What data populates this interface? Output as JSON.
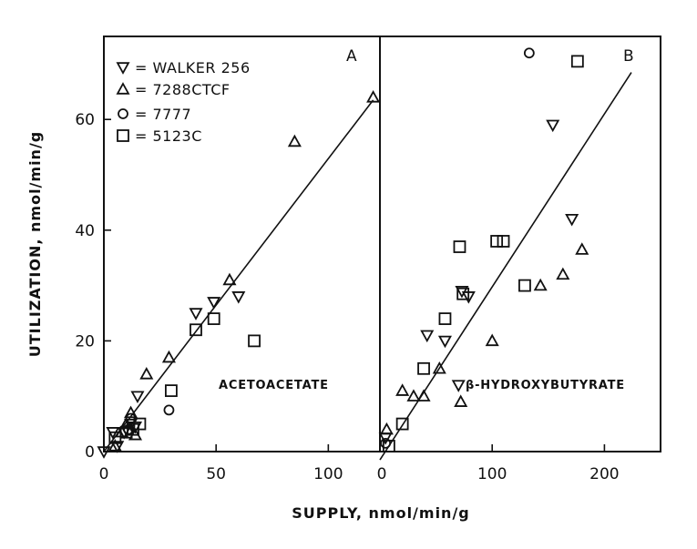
{
  "chart_data": [
    {
      "type": "scatter",
      "panel_label": "A",
      "annotation": "ACETOACETATE",
      "xlim": [
        0,
        123
      ],
      "ylim": [
        0,
        75
      ],
      "x_ticks": [
        0,
        50,
        100
      ],
      "y_ticks": [
        0,
        20,
        40,
        60
      ],
      "legend_position": "top-left",
      "series": [
        {
          "name": "WALKER 256",
          "marker": "triangle-down",
          "points": [
            [
              0,
              0
            ],
            [
              4,
              3.5
            ],
            [
              6,
              1
            ],
            [
              9,
              3.5
            ],
            [
              12,
              5
            ],
            [
              14,
              4.5
            ],
            [
              15,
              10
            ],
            [
              41,
              25
            ],
            [
              49,
              27
            ],
            [
              60,
              28
            ]
          ]
        },
        {
          "name": "7288CTCF",
          "marker": "triangle-up",
          "points": [
            [
              5,
              1
            ],
            [
              8,
              3.5
            ],
            [
              10,
              5
            ],
            [
              12,
              7
            ],
            [
              14,
              3
            ],
            [
              19,
              14
            ],
            [
              29,
              17
            ],
            [
              56,
              31
            ],
            [
              85,
              56
            ],
            [
              120,
              64
            ]
          ]
        },
        {
          "name": "7777",
          "marker": "circle",
          "points": [
            [
              11,
              4
            ],
            [
              12,
              6
            ],
            [
              29,
              7.5
            ]
          ]
        },
        {
          "name": "5123C",
          "marker": "square",
          "points": [
            [
              5,
              2.5
            ],
            [
              10,
              3.5
            ],
            [
              13,
              4
            ],
            [
              16,
              5
            ],
            [
              30,
              11
            ],
            [
              41,
              22
            ],
            [
              49,
              24
            ],
            [
              67,
              20
            ]
          ]
        }
      ],
      "fit_line": [
        [
          0,
          0
        ],
        [
          120,
          63.5
        ]
      ]
    },
    {
      "type": "scatter",
      "panel_label": "B",
      "annotation": "β-HYDROXYBUTYRATE",
      "xlim": [
        0,
        250
      ],
      "ylim": [
        0,
        75
      ],
      "x_ticks": [
        0,
        100,
        200
      ],
      "series": [
        {
          "name": "WALKER 256",
          "marker": "triangle-down",
          "points": [
            [
              5,
              2.5
            ],
            [
              42,
              21
            ],
            [
              58,
              20
            ],
            [
              70,
              12
            ],
            [
              73,
              29
            ],
            [
              79,
              28
            ],
            [
              154,
              59
            ],
            [
              171,
              42
            ]
          ]
        },
        {
          "name": "7288CTCF",
          "marker": "triangle-up",
          "points": [
            [
              6,
              4
            ],
            [
              20,
              11
            ],
            [
              30,
              10
            ],
            [
              39,
              10
            ],
            [
              53,
              15
            ],
            [
              72,
              9
            ],
            [
              100,
              20
            ],
            [
              143,
              30
            ],
            [
              163,
              32
            ],
            [
              180,
              36.5
            ]
          ]
        },
        {
          "name": "7777",
          "marker": "circle",
          "points": [
            [
              5,
              1.5
            ],
            [
              133,
              72
            ]
          ]
        },
        {
          "name": "5123C",
          "marker": "square",
          "points": [
            [
              8,
              1
            ],
            [
              20,
              5
            ],
            [
              39,
              15
            ],
            [
              58,
              24
            ],
            [
              71,
              37
            ],
            [
              74,
              28.5
            ],
            [
              104,
              38
            ],
            [
              110,
              38
            ],
            [
              129,
              30
            ],
            [
              176,
              70.5
            ]
          ]
        }
      ],
      "fit_line": [
        [
          0,
          -1.5
        ],
        [
          224,
          68.5
        ]
      ]
    }
  ],
  "axes": {
    "y_label": "UTILIZATION,  nmol/min/g",
    "x_label": "SUPPLY,  nmol/min/g"
  },
  "legend": [
    {
      "marker": "triangle-down",
      "label": "= WALKER 256"
    },
    {
      "marker": "triangle-up",
      "label": "= 7288CTCF"
    },
    {
      "marker": "circle",
      "label": "= 7777"
    },
    {
      "marker": "square",
      "label": "= 5123C"
    }
  ],
  "colors": {
    "ink": "#111111",
    "background": "#ffffff"
  }
}
